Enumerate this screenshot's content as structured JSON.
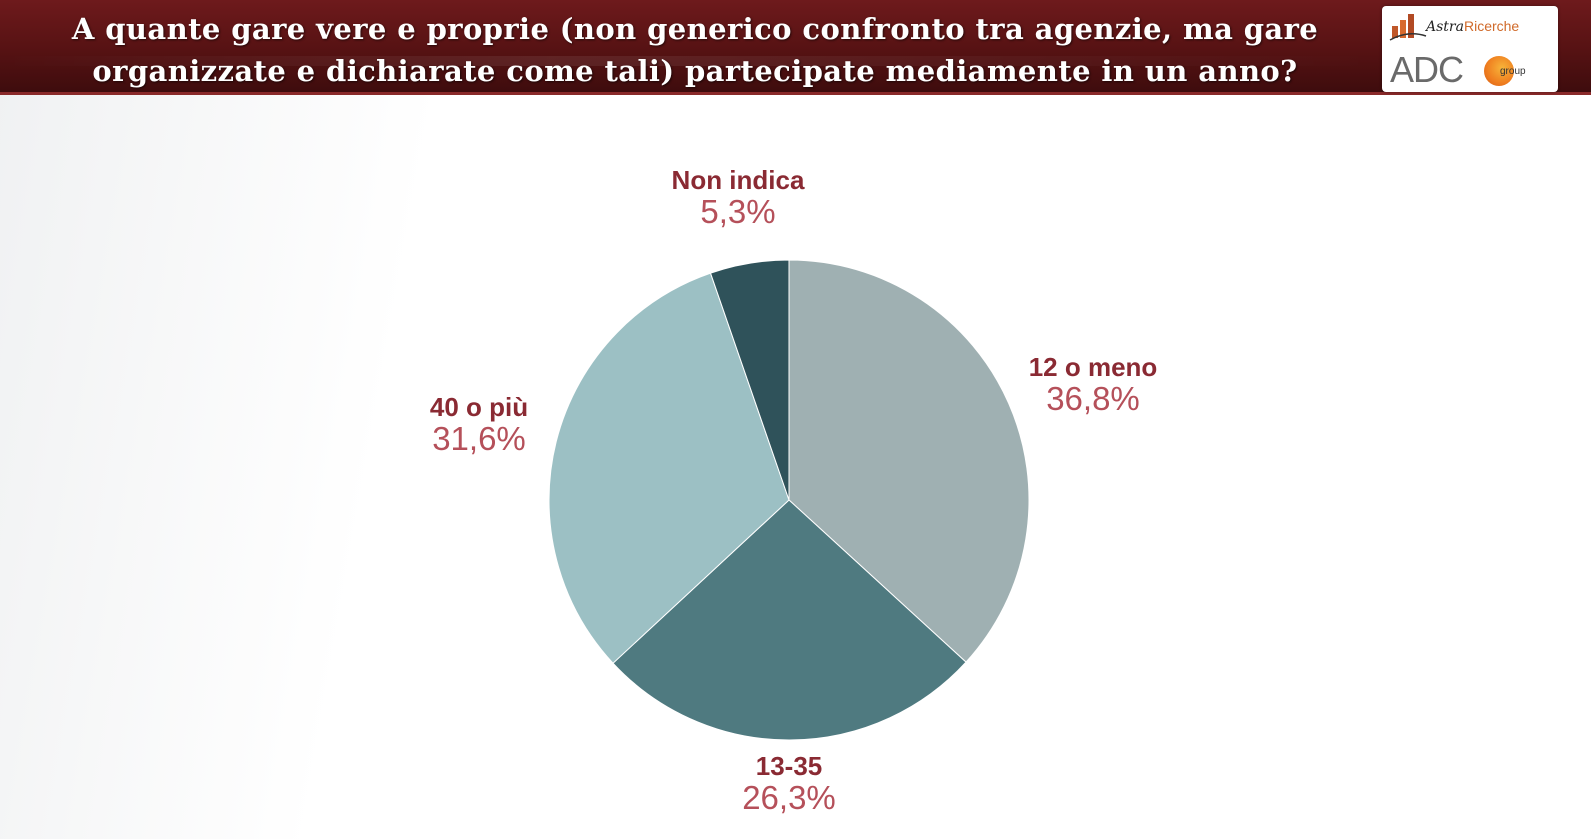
{
  "header": {
    "title_line1": "A quante gare vere e proprie (non generico confronto tra agenzie, ma gare",
    "title_line2": "organizzate e dichiarate come tali) partecipate mediamente in un anno?",
    "logo_top": {
      "prefix": "Astra",
      "suffix": "Ricerche"
    },
    "logo_bottom": {
      "main": "ADC",
      "sub": "group"
    }
  },
  "chart_data": {
    "type": "pie",
    "start_angle_deg": 0,
    "direction": "clockwise",
    "slices": [
      {
        "label": "12 o meno",
        "value": 36.8,
        "display": "36,8%",
        "color": "#9fb0b2"
      },
      {
        "label": "13-35",
        "value": 26.3,
        "display": "26,3%",
        "color": "#4f7a80"
      },
      {
        "label": "40 o più",
        "value": 31.6,
        "display": "31,6%",
        "color": "#9cc0c4"
      },
      {
        "label": "Non indica",
        "value": 5.3,
        "display": "5,3%",
        "color": "#2f525a"
      }
    ]
  }
}
